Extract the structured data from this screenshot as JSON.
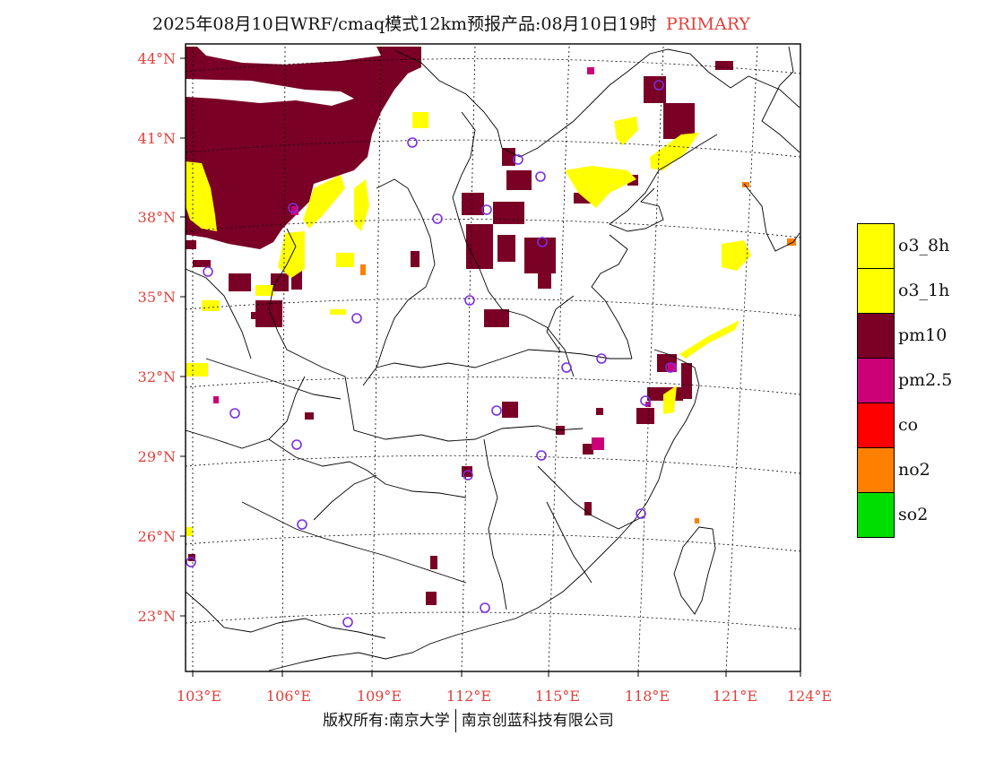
{
  "title": {
    "main": "2025年08月10日WRF/cmaq模式12km预报产品:08月10日19时",
    "tag": "PRIMARY",
    "tag_color": "#e0403c"
  },
  "axes": {
    "lat_labels": [
      "44°N",
      "41°N",
      "38°N",
      "35°N",
      "32°N",
      "29°N",
      "26°N",
      "23°N"
    ],
    "lon_labels": [
      "103°E",
      "106°E",
      "109°E",
      "112°E",
      "115°E",
      "118°E",
      "121°E",
      "124°E"
    ],
    "label_color": "#e0403c"
  },
  "legend": [
    {
      "label": "o3_8h",
      "color": "#ffff00"
    },
    {
      "label": "o3_1h",
      "color": "#ffff00"
    },
    {
      "label": "pm10",
      "color": "#7a0026"
    },
    {
      "label": "pm2.5",
      "color": "#cc0077"
    },
    {
      "label": "co",
      "color": "#ff0000"
    },
    {
      "label": "no2",
      "color": "#ff8000"
    },
    {
      "label": "so2",
      "color": "#00dd00"
    }
  ],
  "footer": {
    "left": "版权所有:南京大学",
    "right": "南京创蓝科技有限公司"
  }
}
